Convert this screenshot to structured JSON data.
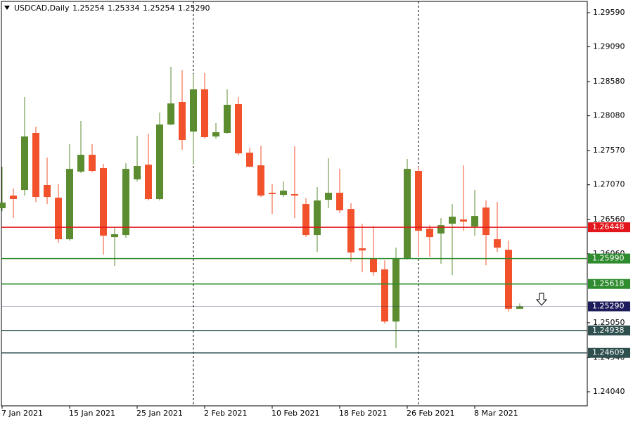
{
  "header": {
    "symbol": "USDCAD,Daily",
    "ohlc": [
      "1.25254",
      "1.25334",
      "1.25254",
      "1.25290"
    ]
  },
  "chart_data": {
    "type": "candlestick",
    "categories": [
      "7 Jan 2021",
      null,
      null,
      null,
      null,
      null,
      "15 Jan 2021",
      null,
      null,
      null,
      null,
      null,
      "25 Jan 2021",
      null,
      null,
      null,
      null,
      null,
      "2 Feb 2021",
      null,
      null,
      null,
      null,
      null,
      "10 Feb 2021",
      null,
      null,
      null,
      null,
      null,
      "18 Feb 2021",
      null,
      null,
      null,
      null,
      null,
      "26 Feb 2021",
      null,
      null,
      null,
      null,
      null,
      "8 Mar 2021",
      null,
      null,
      null,
      null
    ],
    "open": [
      1.26727,
      1.26912,
      1.26994,
      1.27829,
      1.27067,
      1.26881,
      1.26273,
      1.27262,
      1.27509,
      1.27314,
      1.26304,
      1.26335,
      1.27149,
      1.27365,
      1.26861,
      1.27952,
      1.28282,
      1.27849,
      1.28467,
      1.27777,
      1.27829,
      1.28251,
      1.2754,
      1.27355,
      1.26953,
      1.26922,
      1.26933,
      1.26788,
      1.26335,
      1.2685,
      1.26953,
      1.26716,
      1.2614,
      1.25995,
      1.25831,
      1.25068,
      1.25985,
      1.27273,
      1.26428,
      1.26356,
      1.265,
      1.26562,
      1.26459,
      1.26737,
      1.26273,
      1.26119,
      1.25254
    ],
    "high": [
      1.27334,
      1.27015,
      1.28354,
      1.27921,
      1.27468,
      1.27077,
      1.27664,
      1.28004,
      1.27664,
      1.27376,
      1.26438,
      1.27386,
      1.27788,
      1.27818,
      1.28127,
      1.28797,
      1.28745,
      1.28694,
      1.28704,
      1.27973,
      1.28467,
      1.28354,
      1.27612,
      1.27643,
      1.27077,
      1.27118,
      1.27633,
      1.26871,
      1.27036,
      1.27458,
      1.27303,
      1.26799,
      1.265,
      1.26469,
      1.25964,
      1.2615,
      1.27448,
      1.27334,
      1.26479,
      1.26582,
      1.26788,
      1.27355,
      1.26994,
      1.2684,
      1.26819,
      1.26253,
      1.25334
    ],
    "low": [
      1.26685,
      1.26582,
      1.26912,
      1.26819,
      1.26788,
      1.26222,
      1.26253,
      1.27242,
      1.27252,
      1.26047,
      1.25882,
      1.26294,
      1.27118,
      1.2684,
      1.2684,
      1.27942,
      1.27582,
      1.27365,
      1.27746,
      1.27746,
      1.27818,
      1.27499,
      1.27324,
      1.26891,
      1.26644,
      1.26891,
      1.26582,
      1.26304,
      1.26088,
      1.26727,
      1.26655,
      1.25944,
      1.25789,
      1.25738,
      1.25037,
      1.24677,
      1.25975,
      1.26016,
      1.26016,
      1.25913,
      1.25748,
      1.26397,
      1.26325,
      1.25892,
      1.26088,
      1.25212,
      1.25254
    ],
    "close": [
      1.26809,
      1.26861,
      1.27777,
      1.26891,
      1.26891,
      1.26273,
      1.27303,
      1.27509,
      1.27273,
      1.26325,
      1.26346,
      1.27303,
      1.27345,
      1.26861,
      1.27952,
      1.28261,
      1.27726,
      1.28467,
      1.27767,
      1.27839,
      1.28241,
      1.2753,
      1.27334,
      1.26912,
      1.26933,
      1.26984,
      1.26912,
      1.26335,
      1.2684,
      1.26953,
      1.26696,
      1.26078,
      1.26109,
      1.25789,
      1.25068,
      1.25985,
      1.27303,
      1.26397,
      1.26304,
      1.26479,
      1.26603,
      1.26531,
      1.26613,
      1.26335,
      1.2615,
      1.25254,
      1.2529
    ],
    "up_color": "#5b8c2f",
    "down_color": "#f2522b",
    "ylim": [
      1.23834,
      1.29775
    ],
    "yticks": [
      {
        "value": 1.2959,
        "label": "1.29590"
      },
      {
        "value": 1.2909,
        "label": "1.29090"
      },
      {
        "value": 1.2858,
        "label": "1.28580"
      },
      {
        "value": 1.2808,
        "label": "1.28080"
      },
      {
        "value": 1.2757,
        "label": "1.27570"
      },
      {
        "value": 1.2707,
        "label": "1.27070"
      },
      {
        "value": 1.2656,
        "label": "1.26560"
      },
      {
        "value": 1.2606,
        "label": "1.26060"
      },
      {
        "value": 1.2505,
        "label": "1.25050"
      },
      {
        "value": 1.2454,
        "label": "1.24540"
      },
      {
        "value": 1.2404,
        "label": "1.24040"
      }
    ],
    "levels": [
      {
        "value": 1.26448,
        "label": "1.26448",
        "color": "#e3161b"
      },
      {
        "value": 1.2599,
        "label": "1.25990",
        "color": "#2e8b2e"
      },
      {
        "value": 1.25618,
        "label": "1.25618",
        "color": "#2e8b2e"
      },
      {
        "value": 1.2529,
        "label": "1.25290",
        "color": "#1c1c5c"
      },
      {
        "value": 1.24938,
        "label": "1.24938",
        "color": "#2f4f4f"
      },
      {
        "value": 1.24609,
        "label": "1.24609",
        "color": "#2f4f4f"
      }
    ]
  }
}
